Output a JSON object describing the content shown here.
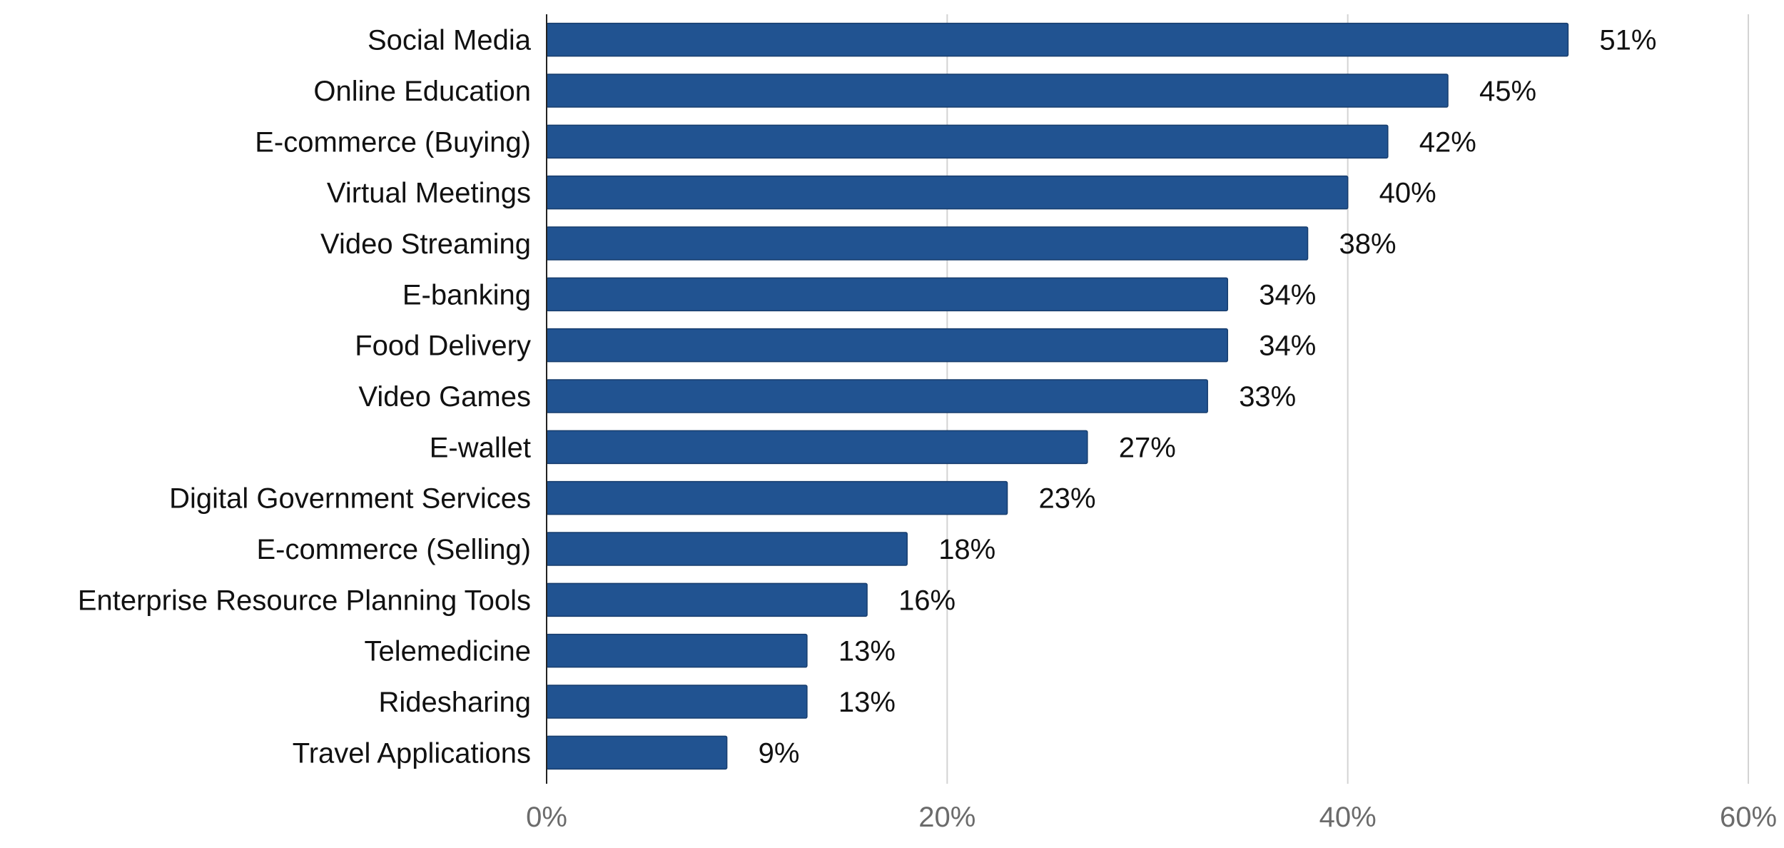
{
  "chart_data": {
    "type": "bar",
    "orientation": "horizontal",
    "categories": [
      "Social Media",
      "Online Education",
      "E-commerce (Buying)",
      "Virtual Meetings",
      "Video Streaming",
      "E-banking",
      "Food Delivery",
      "Video Games",
      "E-wallet",
      "Digital Government Services",
      "E-commerce (Selling)",
      "Enterprise Resource Planning Tools",
      "Telemedicine",
      "Ridesharing",
      "Travel Applications"
    ],
    "values": [
      51,
      45,
      42,
      40,
      38,
      34,
      34,
      33,
      27,
      23,
      18,
      16,
      13,
      13,
      9
    ],
    "value_labels": [
      "51%",
      "45%",
      "42%",
      "40%",
      "38%",
      "34%",
      "34%",
      "33%",
      "27%",
      "23%",
      "18%",
      "16%",
      "13%",
      "13%",
      "9%"
    ],
    "xlim": [
      0,
      60
    ],
    "xticks": [
      0,
      20,
      40,
      60
    ],
    "xtick_labels": [
      "0%",
      "20%",
      "40%",
      "60%"
    ],
    "bar_color": "#215391",
    "grid": "vertical",
    "title": "",
    "xlabel": "",
    "ylabel": ""
  }
}
